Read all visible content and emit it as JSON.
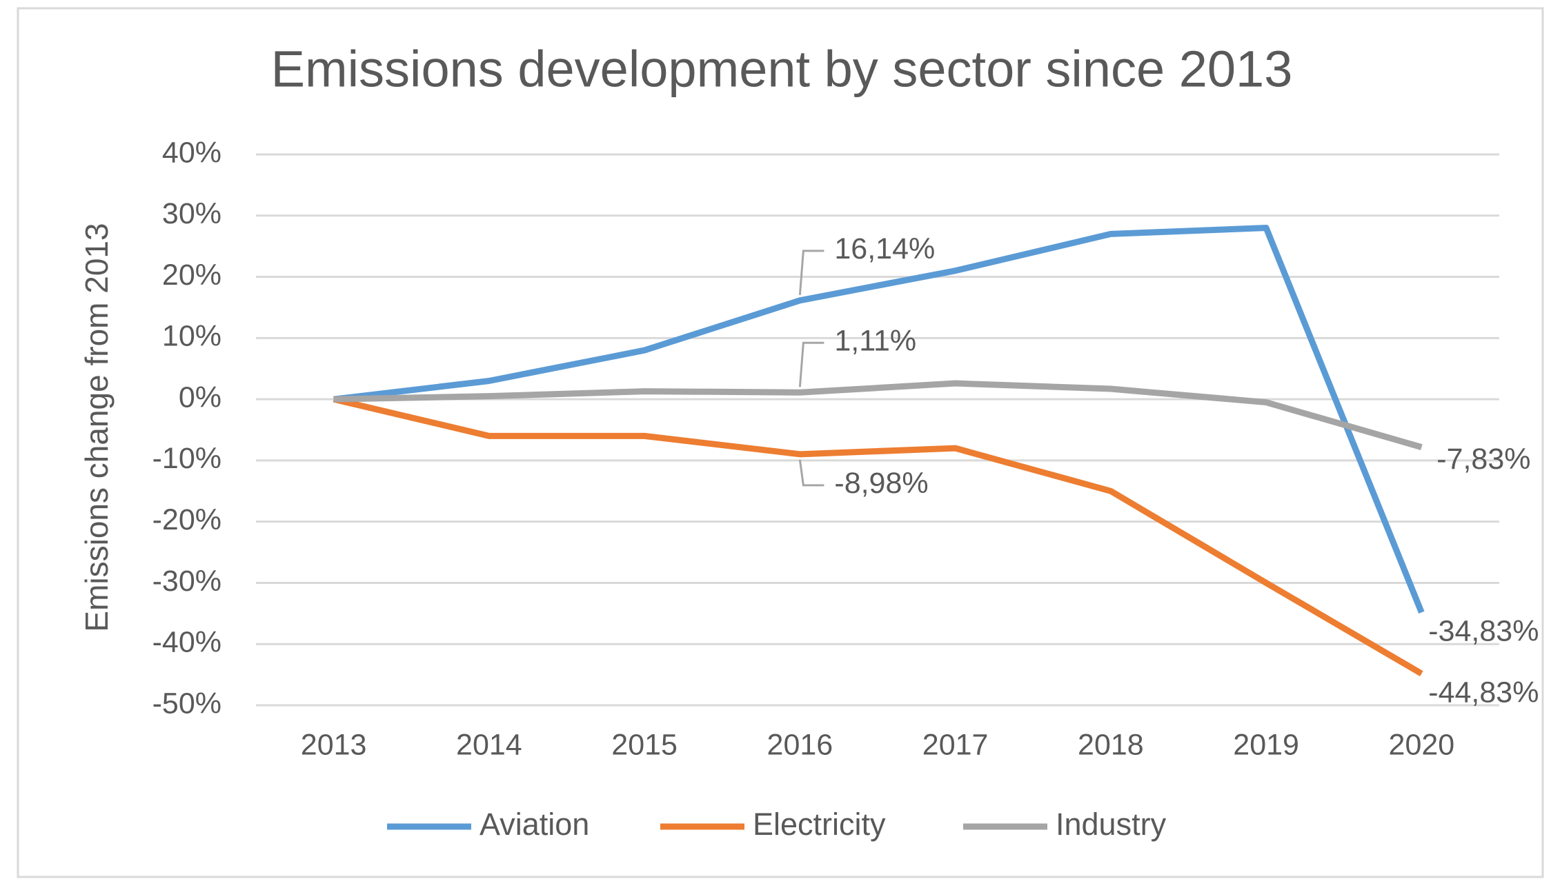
{
  "chart_data": {
    "type": "line",
    "title": "Emissions development by sector since 2013",
    "y_label": "Emissions change from 2013",
    "categories": [
      "2013",
      "2014",
      "2015",
      "2016",
      "2017",
      "2018",
      "2019",
      "2020"
    ],
    "series": [
      {
        "name": "Aviation",
        "color": "#5b9bd5",
        "values": [
          0,
          3,
          8,
          16.14,
          21,
          27,
          28,
          -34.83
        ],
        "value_labels": [
          null,
          null,
          null,
          "16,14%",
          null,
          null,
          null,
          "-34,83%"
        ]
      },
      {
        "name": "Electricity",
        "color": "#ed7d31",
        "values": [
          0,
          -6,
          -6,
          -8.98,
          -8,
          -15,
          -30,
          -44.83
        ],
        "value_labels": [
          null,
          null,
          null,
          "-8,98%",
          null,
          null,
          null,
          "-44,83%"
        ]
      },
      {
        "name": "Industry",
        "color": "#a5a5a5",
        "values": [
          0,
          0.5,
          1.3,
          1.11,
          2.6,
          1.7,
          -0.5,
          -7.83
        ],
        "value_labels": [
          null,
          null,
          null,
          "1,11%",
          null,
          null,
          null,
          "-7,83%"
        ]
      }
    ],
    "ylim": [
      -50,
      40
    ],
    "yticks": [
      {
        "value": -50,
        "label": "-50%"
      },
      {
        "value": -40,
        "label": "-40%"
      },
      {
        "value": -30,
        "label": "-30%"
      },
      {
        "value": -20,
        "label": "-20%"
      },
      {
        "value": -10,
        "label": "-10%"
      },
      {
        "value": 0,
        "label": "0%"
      },
      {
        "value": 10,
        "label": "10%"
      },
      {
        "value": 20,
        "label": "20%"
      },
      {
        "value": 30,
        "label": "30%"
      },
      {
        "value": 40,
        "label": "40%"
      }
    ],
    "grid": true,
    "legend": "bottom"
  }
}
